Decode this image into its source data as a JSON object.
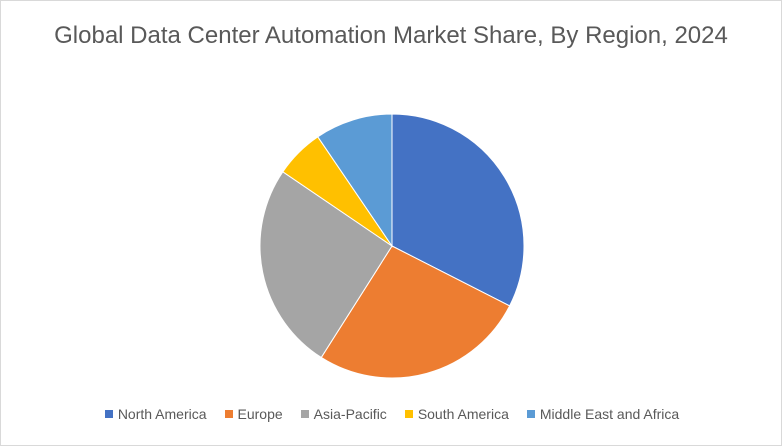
{
  "chart_data": {
    "type": "pie",
    "title": "Global Data Center Automation Market Share, By Region, 2024",
    "categories": [
      "North America",
      "Europe",
      "Asia-Pacific",
      "South America",
      "Middle East and Africa"
    ],
    "values": [
      32.5,
      26.5,
      25.5,
      6.0,
      9.5
    ],
    "colors": [
      "#4472c4",
      "#ed7d31",
      "#a5a5a5",
      "#ffc000",
      "#5b9bd5"
    ],
    "legend_position": "bottom"
  }
}
